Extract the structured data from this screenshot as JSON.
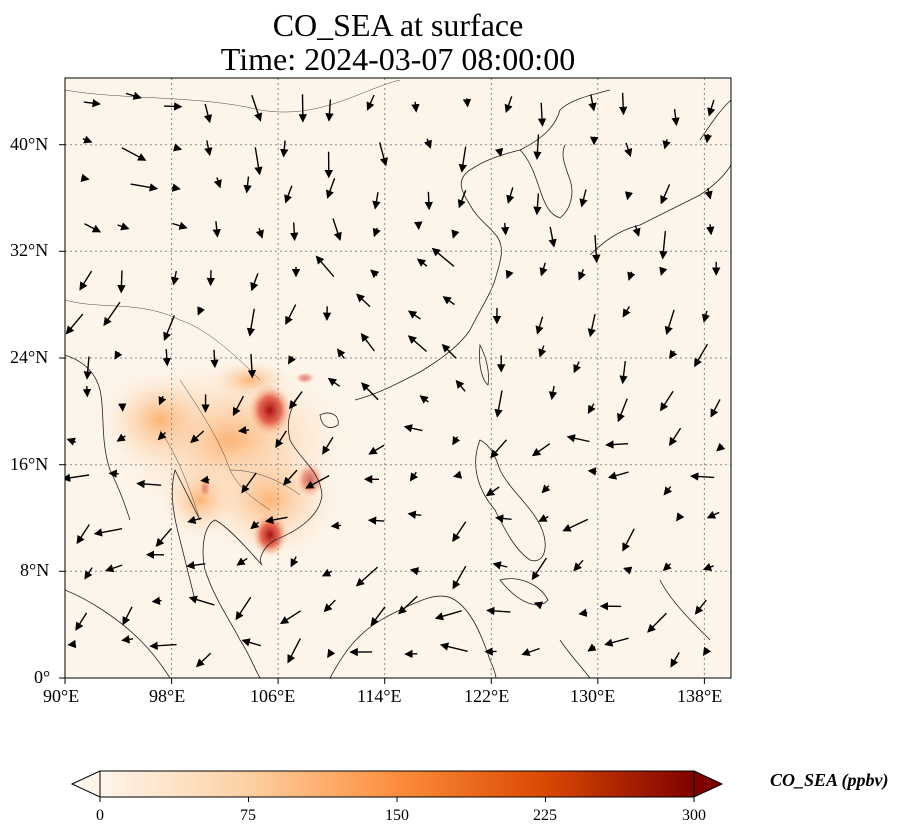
{
  "title": {
    "line1": "CO_SEA at surface",
    "line2": "Time: 2024-03-07 08:00:00"
  },
  "map": {
    "lon_range": [
      90,
      140
    ],
    "lat_range": [
      0,
      45
    ],
    "lon_ticks": [
      "90°E",
      "98°E",
      "106°E",
      "114°E",
      "122°E",
      "130°E",
      "138°E"
    ],
    "lat_ticks": [
      "0°",
      "8°N",
      "16°N",
      "24°N",
      "32°N",
      "40°N"
    ],
    "gridlines": "dotted",
    "coastlines": true,
    "wind_vectors": true
  },
  "colorbar": {
    "label": "CO_SEA (ppbv)",
    "ticks": [
      "0",
      "75",
      "150",
      "225",
      "300"
    ],
    "range": [
      0,
      300
    ],
    "colormap": [
      "#fff5eb",
      "#fdd0a2",
      "#fd8d3c",
      "#d94801",
      "#7f0000"
    ],
    "extend": "both"
  }
}
